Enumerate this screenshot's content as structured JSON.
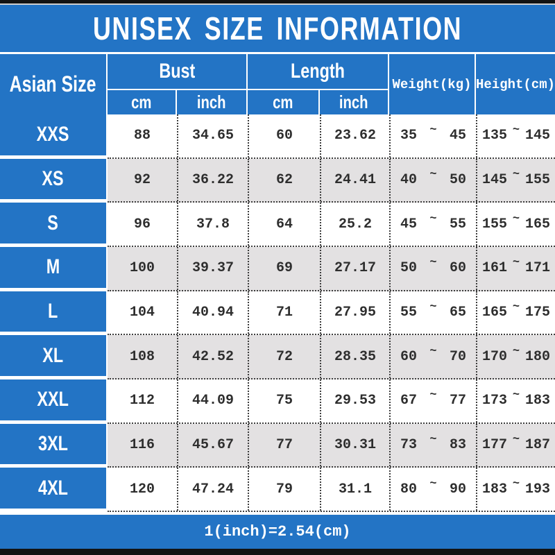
{
  "title": "UNISEX SIZE INFORMATION",
  "header": {
    "asian_size": "Asian Size",
    "bust": "Bust",
    "length": "Length",
    "cm": "cm",
    "inch": "inch",
    "weight": "Weight(kg)",
    "height": "Height(cm)"
  },
  "range_separator": "~",
  "table": {
    "rows": [
      {
        "size": "XXS",
        "bust_cm": "88",
        "bust_inch": "34.65",
        "length_cm": "60",
        "length_inch": "23.62",
        "weight_min": "35",
        "weight_max": "45",
        "height_min": "135",
        "height_max": "145"
      },
      {
        "size": "XS",
        "bust_cm": "92",
        "bust_inch": "36.22",
        "length_cm": "62",
        "length_inch": "24.41",
        "weight_min": "40",
        "weight_max": "50",
        "height_min": "145",
        "height_max": "155"
      },
      {
        "size": "S",
        "bust_cm": "96",
        "bust_inch": "37.8",
        "length_cm": "64",
        "length_inch": "25.2",
        "weight_min": "45",
        "weight_max": "55",
        "height_min": "155",
        "height_max": "165"
      },
      {
        "size": "M",
        "bust_cm": "100",
        "bust_inch": "39.37",
        "length_cm": "69",
        "length_inch": "27.17",
        "weight_min": "50",
        "weight_max": "60",
        "height_min": "161",
        "height_max": "171"
      },
      {
        "size": "L",
        "bust_cm": "104",
        "bust_inch": "40.94",
        "length_cm": "71",
        "length_inch": "27.95",
        "weight_min": "55",
        "weight_max": "65",
        "height_min": "165",
        "height_max": "175"
      },
      {
        "size": "XL",
        "bust_cm": "108",
        "bust_inch": "42.52",
        "length_cm": "72",
        "length_inch": "28.35",
        "weight_min": "60",
        "weight_max": "70",
        "height_min": "170",
        "height_max": "180"
      },
      {
        "size": "XXL",
        "bust_cm": "112",
        "bust_inch": "44.09",
        "length_cm": "75",
        "length_inch": "29.53",
        "weight_min": "67",
        "weight_max": "77",
        "height_min": "173",
        "height_max": "183"
      },
      {
        "size": "3XL",
        "bust_cm": "116",
        "bust_inch": "45.67",
        "length_cm": "77",
        "length_inch": "30.31",
        "weight_min": "73",
        "weight_max": "83",
        "height_min": "177",
        "height_max": "187"
      },
      {
        "size": "4XL",
        "bust_cm": "120",
        "bust_inch": "47.24",
        "length_cm": "79",
        "length_inch": "31.1",
        "weight_min": "80",
        "weight_max": "90",
        "height_min": "183",
        "height_max": "193"
      }
    ]
  },
  "footer": "1(inch)=2.54(cm)",
  "colors": {
    "accent_blue": "#2374c5",
    "row_alt_gray": "#e3e1e2",
    "bar_black": "#131313",
    "text_dark": "#2e2e2e",
    "text_white": "#ffffff"
  },
  "chart_data": {
    "type": "table",
    "title": "UNISEX SIZE INFORMATION",
    "columns": [
      "Asian Size",
      "Bust cm",
      "Bust inch",
      "Length cm",
      "Length inch",
      "Weight(kg)",
      "Height(cm)"
    ],
    "rows": [
      [
        "XXS",
        88,
        34.65,
        60,
        23.62,
        "35~45",
        "135~145"
      ],
      [
        "XS",
        92,
        36.22,
        62,
        24.41,
        "40~50",
        "145~155"
      ],
      [
        "S",
        96,
        37.8,
        64,
        25.2,
        "45~55",
        "155~165"
      ],
      [
        "M",
        100,
        39.37,
        69,
        27.17,
        "50~60",
        "161~171"
      ],
      [
        "L",
        104,
        40.94,
        71,
        27.95,
        "55~65",
        "165~175"
      ],
      [
        "XL",
        108,
        42.52,
        72,
        28.35,
        "60~70",
        "170~180"
      ],
      [
        "XXL",
        112,
        44.09,
        75,
        29.53,
        "67~77",
        "173~183"
      ],
      [
        "3XL",
        116,
        45.67,
        77,
        30.31,
        "73~83",
        "177~187"
      ],
      [
        "4XL",
        120,
        47.24,
        79,
        31.1,
        "80~90",
        "183~193"
      ]
    ],
    "note": "1(inch)=2.54(cm)"
  }
}
